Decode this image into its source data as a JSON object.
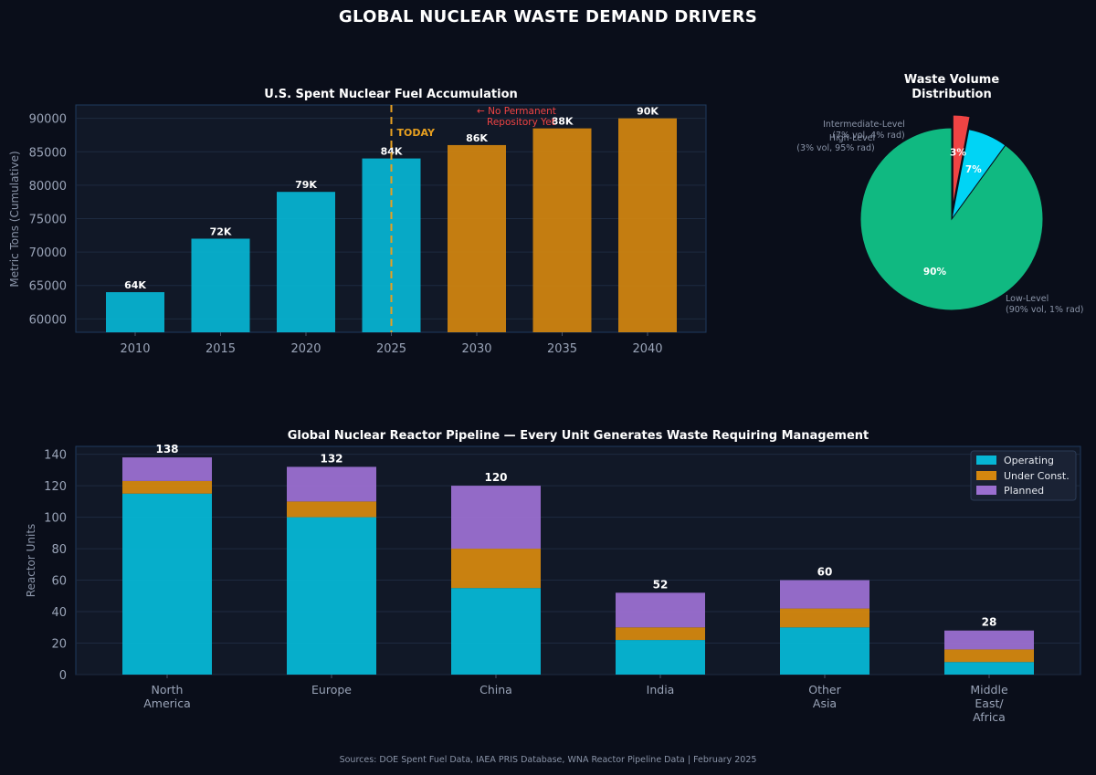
{
  "title": "GLOBAL NUCLEAR WASTE DEMAND DRIVERS",
  "footer": "Sources: DOE Spent Fuel Data, IAEA PRIS Database, WNA Reactor Pipeline Data  |  February 2025",
  "colors": {
    "background": "#0a0e1a",
    "panel": "#111827",
    "cyan": "#06b6d4",
    "orange": "#d4870f",
    "purple": "#9b6fd0",
    "green": "#10b981",
    "red": "#ef4444",
    "light_cyan": "#00d4f5"
  },
  "chart_data": [
    {
      "type": "bar",
      "title": "U.S. Spent Nuclear Fuel Accumulation",
      "ylabel": "Metric Tons (Cumulative)",
      "xlabel": "",
      "categories": [
        "2010",
        "2015",
        "2020",
        "2025",
        "2030",
        "2035",
        "2040"
      ],
      "values": [
        64000,
        72000,
        79000,
        84000,
        86000,
        88500,
        90000
      ],
      "value_labels": [
        "64K",
        "72K",
        "79K",
        "84K",
        "86K",
        "88K",
        "90K"
      ],
      "projected_from_index": 4,
      "ylim": [
        58000,
        92000
      ],
      "yticks": [
        60000,
        65000,
        70000,
        75000,
        80000,
        85000,
        90000
      ],
      "today_marker": {
        "x": "2025",
        "label": "TODAY"
      },
      "annotation": {
        "line1": "← No Permanent",
        "line2": "Repository Yet"
      }
    },
    {
      "type": "pie",
      "title_line1": "Waste Volume",
      "title_line2": "Distribution",
      "slices": [
        {
          "name": "Low-Level",
          "value": 90,
          "pct_label": "90%",
          "label_line1": "Low-Level",
          "label_line2": "(90% vol, 1% rad)"
        },
        {
          "name": "Intermediate-Level",
          "value": 7,
          "pct_label": "7%",
          "label_line1": "Intermediate-Level",
          "label_line2": "(7% vol, 4% rad)"
        },
        {
          "name": "High-Level",
          "value": 3,
          "pct_label": "3%",
          "label_line1": "High-Level",
          "label_line2": "(3% vol, 95% rad)",
          "exploded": true
        }
      ]
    },
    {
      "type": "stacked-bar",
      "title": "Global Nuclear Reactor Pipeline — Every Unit Generates Waste Requiring Management",
      "ylabel": "Reactor Units",
      "xlabel": "",
      "categories": [
        [
          "North",
          "America"
        ],
        [
          "Europe"
        ],
        [
          "China"
        ],
        [
          "India"
        ],
        [
          "Other",
          "Asia"
        ],
        [
          "Middle",
          "East/",
          "Africa"
        ]
      ],
      "series": [
        {
          "name": "Operating",
          "values": [
            115,
            100,
            55,
            22,
            30,
            8
          ]
        },
        {
          "name": "Under Const.",
          "values": [
            8,
            10,
            25,
            8,
            12,
            8
          ]
        },
        {
          "name": "Planned",
          "values": [
            15,
            22,
            40,
            22,
            18,
            12
          ]
        }
      ],
      "totals": [
        138,
        132,
        120,
        52,
        60,
        28
      ],
      "ylim": [
        0,
        145
      ],
      "yticks": [
        0,
        20,
        40,
        60,
        80,
        100,
        120,
        140
      ],
      "legend_position": "top-right"
    }
  ]
}
